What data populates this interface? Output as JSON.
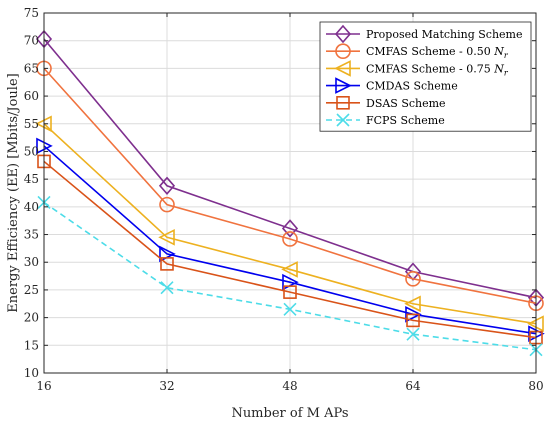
{
  "chart_data": {
    "type": "line",
    "xlabel": "Number of M APs",
    "ylabel": "Energy Efficiency (EE) [Mbits/Joule]",
    "x": [
      16,
      32,
      48,
      64,
      80
    ],
    "xlim": [
      16,
      80
    ],
    "ylim": [
      10,
      75
    ],
    "xticks": [
      "16",
      "32",
      "48",
      "64",
      "80"
    ],
    "yticks": [
      "10",
      "15",
      "20",
      "25",
      "30",
      "35",
      "40",
      "45",
      "50",
      "55",
      "60",
      "65",
      "70",
      "75"
    ],
    "grid": true,
    "legend_position": "top-right",
    "series": [
      {
        "name": "Proposed Matching Scheme",
        "values": [
          70.3,
          43.8,
          36.1,
          28.3,
          23.6
        ],
        "color": "#7E2F8E",
        "marker": "diamond",
        "line": "solid"
      },
      {
        "name": "CMFAS Scheme - 0.50 N_r",
        "values": [
          65.0,
          40.4,
          34.2,
          27.0,
          22.6
        ],
        "color": "#F0733F",
        "marker": "circle",
        "line": "solid"
      },
      {
        "name": "CMFAS Scheme - 0.75 N_r",
        "values": [
          55.0,
          34.5,
          28.7,
          22.5,
          18.9
        ],
        "color": "#EDB120",
        "marker": "triangle-left",
        "line": "solid"
      },
      {
        "name": "CMDAS Scheme",
        "values": [
          51.0,
          31.5,
          26.4,
          20.6,
          17.1
        ],
        "color": "#0000EE",
        "marker": "triangle-right",
        "line": "solid"
      },
      {
        "name": "DSAS Scheme",
        "values": [
          48.2,
          29.7,
          24.6,
          19.5,
          16.4
        ],
        "color": "#D95319",
        "marker": "square",
        "line": "solid"
      },
      {
        "name": "FCPS Scheme",
        "values": [
          40.8,
          25.4,
          21.5,
          17.0,
          14.2
        ],
        "color": "#4DDCE8",
        "marker": "x",
        "line": "dashed"
      }
    ]
  }
}
